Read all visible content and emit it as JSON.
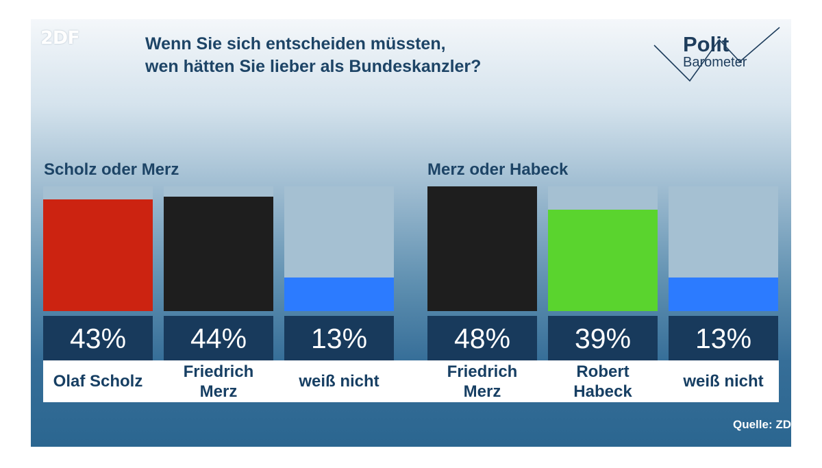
{
  "header": {
    "logo_text": "2DF",
    "title_line1": "Wenn Sie sich entscheiden müssten,",
    "title_line2": "wen hätten Sie lieber als Bundeskanzler?",
    "brand_line1": "Polit",
    "brand_line2": "Barometer"
  },
  "footer": {
    "source": "Quelle: ZD"
  },
  "colors": {
    "scholz": "#cc2311",
    "merz": "#1e1e1e",
    "habeck": "#5ad42e",
    "unknown": "#2c7bff",
    "track": "#a5c0d2"
  },
  "chart_data": [
    {
      "type": "bar",
      "title": "Scholz oder Merz",
      "categories": [
        "Olaf Scholz",
        "Friedrich Merz",
        "weiß nicht"
      ],
      "values": [
        43,
        44,
        13
      ],
      "value_labels": [
        "43%",
        "44%",
        "13%"
      ],
      "colors": [
        "#cc2311",
        "#1e1e1e",
        "#2c7bff"
      ],
      "ylim": [
        0,
        48
      ]
    },
    {
      "type": "bar",
      "title": "Merz oder Habeck",
      "categories": [
        "Friedrich Merz",
        "Robert Habeck",
        "weiß nicht"
      ],
      "values": [
        48,
        39,
        13
      ],
      "value_labels": [
        "48%",
        "39%",
        "13%"
      ],
      "colors": [
        "#1e1e1e",
        "#5ad42e",
        "#2c7bff"
      ],
      "ylim": [
        0,
        48
      ]
    }
  ]
}
